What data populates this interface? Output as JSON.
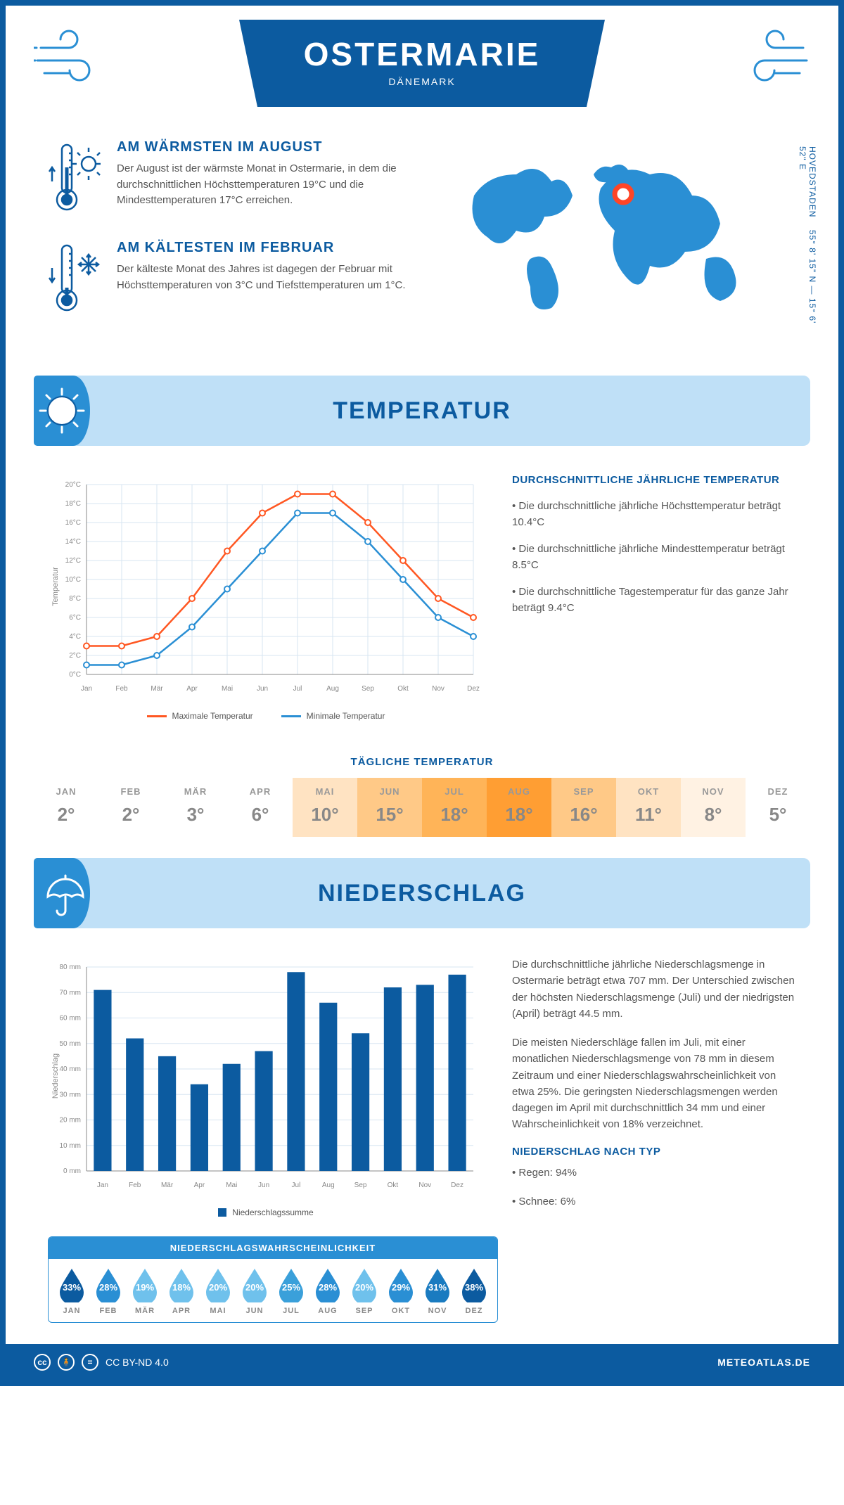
{
  "header": {
    "title": "OSTERMARIE",
    "country": "DÄNEMARK"
  },
  "coords": {
    "text": "55° 8' 15\" N — 15° 6' 52\" E",
    "region": "HOVEDSTADEN"
  },
  "facts": {
    "warm": {
      "title": "AM WÄRMSTEN IM AUGUST",
      "text": "Der August ist der wärmste Monat in Ostermarie, in dem die durchschnittlichen Höchsttemperaturen 19°C und die Mindesttemperaturen 17°C erreichen."
    },
    "cold": {
      "title": "AM KÄLTESTEN IM FEBRUAR",
      "text": "Der kälteste Monat des Jahres ist dagegen der Februar mit Höchsttemperaturen von 3°C und Tiefsttemperaturen um 1°C."
    }
  },
  "sections": {
    "temperature": "TEMPERATUR",
    "precipitation": "NIEDERSCHLAG"
  },
  "months": [
    "Jan",
    "Feb",
    "Mär",
    "Apr",
    "Mai",
    "Jun",
    "Jul",
    "Aug",
    "Sep",
    "Okt",
    "Nov",
    "Dez"
  ],
  "months_upper": [
    "JAN",
    "FEB",
    "MÄR",
    "APR",
    "MAI",
    "JUN",
    "JUL",
    "AUG",
    "SEP",
    "OKT",
    "NOV",
    "DEZ"
  ],
  "temp_chart": {
    "type": "line",
    "ylabel": "Temperatur",
    "ylim": [
      0,
      20
    ],
    "ytick_step": 2,
    "ytick_suffix": "°C",
    "grid_color": "#d7e6f2",
    "background_color": "#ffffff",
    "line_width": 2.5,
    "marker": "circle",
    "marker_size": 4,
    "series": {
      "max": {
        "label": "Maximale Temperatur",
        "color": "#ff5722",
        "values": [
          3,
          3,
          4,
          8,
          13,
          17,
          19,
          19,
          16,
          12,
          8,
          6
        ]
      },
      "min": {
        "label": "Minimale Temperatur",
        "color": "#2a8fd4",
        "values": [
          1,
          1,
          2,
          5,
          9,
          13,
          17,
          17,
          14,
          10,
          6,
          4
        ]
      }
    }
  },
  "temp_text": {
    "heading": "DURCHSCHNITTLICHE JÄHRLICHE TEMPERATUR",
    "b1": "• Die durchschnittliche jährliche Höchsttemperatur beträgt 10.4°C",
    "b2": "• Die durchschnittliche jährliche Mindesttemperatur beträgt 8.5°C",
    "b3": "• Die durchschnittliche Tagestemperatur für das ganze Jahr beträgt 9.4°C"
  },
  "daily_temp": {
    "title": "TÄGLICHE TEMPERATUR",
    "values": [
      "2°",
      "2°",
      "3°",
      "6°",
      "10°",
      "15°",
      "18°",
      "18°",
      "16°",
      "11°",
      "8°",
      "5°"
    ],
    "colors": [
      "#ffffff",
      "#ffffff",
      "#ffffff",
      "#ffffff",
      "#ffe3c2",
      "#ffc987",
      "#ffb458",
      "#ff9e33",
      "#ffc987",
      "#ffe3c2",
      "#fff2e3",
      "#ffffff"
    ]
  },
  "prec_chart": {
    "type": "bar",
    "ylabel": "Niederschlag",
    "ylim": [
      0,
      80
    ],
    "ytick_step": 10,
    "ytick_suffix": " mm",
    "bar_color": "#0c5ba0",
    "bar_width": 0.55,
    "grid_color": "#d7e6f2",
    "legend_label": "Niederschlagssumme",
    "values": [
      71,
      52,
      45,
      34,
      42,
      47,
      78,
      66,
      54,
      72,
      73,
      77
    ]
  },
  "prec_text": {
    "p1": "Die durchschnittliche jährliche Niederschlagsmenge in Ostermarie beträgt etwa 707 mm. Der Unterschied zwischen der höchsten Niederschlagsmenge (Juli) und der niedrigsten (April) beträgt 44.5 mm.",
    "p2": "Die meisten Niederschläge fallen im Juli, mit einer monatlichen Niederschlagsmenge von 78 mm in diesem Zeitraum und einer Niederschlagswahrscheinlichkeit von etwa 25%. Die geringsten Niederschlagsmengen werden dagegen im April mit durchschnittlich 34 mm und einer Wahrscheinlichkeit von 18% verzeichnet.",
    "type_heading": "NIEDERSCHLAG NACH TYP",
    "type_rain": "• Regen: 94%",
    "type_snow": "• Schnee: 6%"
  },
  "probability": {
    "title": "NIEDERSCHLAGSWAHRSCHEINLICHKEIT",
    "values": [
      "33%",
      "28%",
      "19%",
      "18%",
      "20%",
      "20%",
      "25%",
      "28%",
      "20%",
      "29%",
      "31%",
      "38%"
    ],
    "colors": [
      "#0c5ba0",
      "#2a8fd4",
      "#6fc1ec",
      "#6fc1ec",
      "#6fc1ec",
      "#6fc1ec",
      "#3aa0da",
      "#2a8fd4",
      "#6fc1ec",
      "#2a8fd4",
      "#1a7bc0",
      "#0c5ba0"
    ]
  },
  "footer": {
    "license": "CC BY-ND 4.0",
    "site": "METEOATLAS.DE"
  },
  "colors": {
    "primary": "#0c5ba0",
    "secondary": "#2a8fd4",
    "light": "#bfe0f7",
    "map": "#2a8fd4",
    "marker": "#ff4527"
  }
}
